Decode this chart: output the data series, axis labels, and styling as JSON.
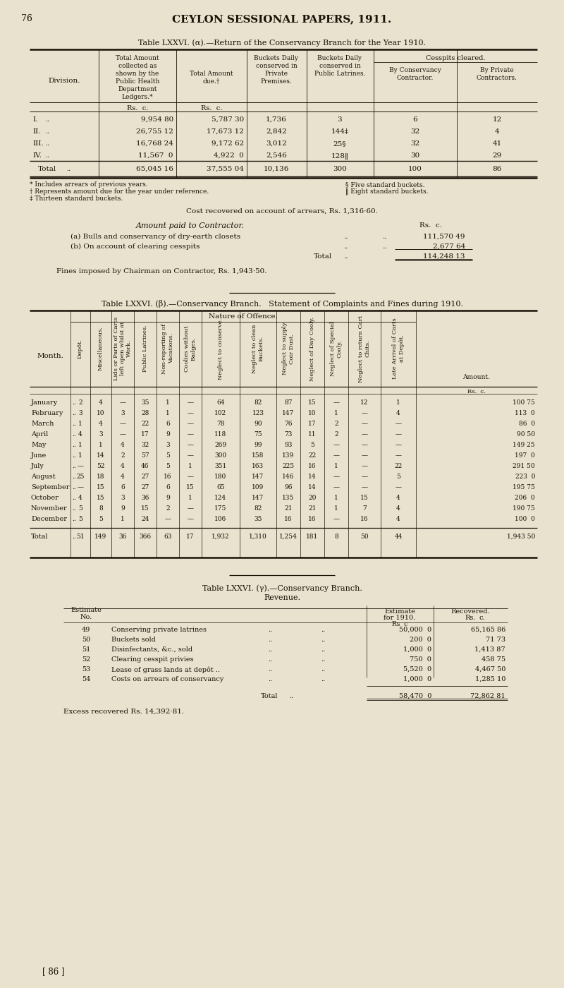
{
  "bg_color": "#e8e2ce",
  "text_color": "#1a1208",
  "table_a_rows": [
    [
      "I.",
      "..",
      "9,954 80",
      "5,787 30",
      "1,736",
      "3",
      "6",
      "12"
    ],
    [
      "II.",
      "..",
      "26,755 12",
      "17,673 12",
      "2,842",
      "144‡",
      "32",
      "4"
    ],
    [
      "III.",
      "..",
      "16,768 24",
      "9,172 62",
      "3,012",
      "25§",
      "32",
      "41"
    ],
    [
      "IV.",
      "..",
      "11,567  0",
      "4,922  0",
      "2,546",
      "128‖",
      "30",
      "29"
    ]
  ],
  "table_a_total": [
    "Total",
    "..",
    "65,045 16",
    "37,555 04",
    "10,136",
    "300",
    "100",
    "86"
  ],
  "table_b_rows": [
    [
      "January",
      "..",
      "2",
      "4",
      "—",
      "35",
      "1",
      "—",
      "64",
      "82",
      "87",
      "15",
      "—",
      "12",
      "1",
      "100 75"
    ],
    [
      "February",
      "..",
      "3",
      "10",
      "3",
      "28",
      "1",
      "—",
      "102",
      "123",
      "147",
      "10",
      "1",
      "—",
      "4",
      "113  0"
    ],
    [
      "March",
      "..",
      "1",
      "4",
      "—",
      "22",
      "6",
      "—",
      "78",
      "90",
      "76",
      "17",
      "2",
      "—",
      "—",
      "86  0"
    ],
    [
      "April",
      "..",
      "4",
      "3",
      "—",
      "17",
      "9",
      "—",
      "118",
      "75",
      "73",
      "11",
      "2",
      "—",
      "—",
      "90 50"
    ],
    [
      "May",
      "..",
      "1",
      "1",
      "4",
      "32",
      "3",
      "—",
      "269",
      "99",
      "93",
      "5",
      "—",
      "—",
      "—",
      "149 25"
    ],
    [
      "June",
      "..",
      "1",
      "14",
      "2",
      "57",
      "5",
      "—",
      "300",
      "158",
      "139",
      "22",
      "—",
      "—",
      "—",
      "197  0"
    ],
    [
      "July",
      "..",
      "—",
      "52",
      "4",
      "46",
      "5",
      "1",
      "351",
      "163",
      "225",
      "16",
      "1",
      "—",
      "22",
      "291 50"
    ],
    [
      "August",
      "..",
      "25",
      "18",
      "4",
      "27",
      "16",
      "—",
      "180",
      "147",
      "146",
      "14",
      "—",
      "—",
      "5",
      "223  0"
    ],
    [
      "September",
      "..",
      "—",
      "15",
      "6",
      "27",
      "6",
      "15",
      "65",
      "109",
      "96",
      "14",
      "—",
      "—",
      "—",
      "195 75"
    ],
    [
      "October",
      "..",
      "4",
      "15",
      "3",
      "36",
      "9",
      "1",
      "124",
      "147",
      "135",
      "20",
      "1",
      "15",
      "4",
      "206  0"
    ],
    [
      "November",
      "..",
      "5",
      "8",
      "9",
      "15",
      "2",
      "—",
      "175",
      "82",
      "21",
      "21",
      "1",
      "7",
      "4",
      "190 75"
    ],
    [
      "December",
      "..",
      "5",
      "5",
      "1",
      "24",
      "—",
      "—",
      "106",
      "35",
      "16",
      "16",
      "—",
      "16",
      "4",
      "100  0"
    ]
  ],
  "table_b_total": [
    "Total",
    "..",
    "51",
    "149",
    "36",
    "366",
    "63",
    "17",
    "1,932",
    "1,310",
    "1,254",
    "181",
    "8",
    "50",
    "44",
    "1,943 50"
  ],
  "table_c_rows": [
    [
      "49",
      "Conserving private latrines",
      "50,000  0",
      "65,165 86"
    ],
    [
      "50",
      "Buckets sold",
      "200  0",
      "71 73"
    ],
    [
      "51",
      "Disinfectants, &c., sold",
      "1,000  0",
      "1,413 87"
    ],
    [
      "52",
      "Clearing cesspit privies",
      "750  0",
      "458 75"
    ],
    [
      "53",
      "Lease of grass lands at depôt ..",
      "5,520  0",
      "4,467 50"
    ],
    [
      "54",
      "Costs on arrears of conservancy",
      "1,000  0",
      "1,285 10"
    ]
  ],
  "table_c_total": [
    "58,470  0",
    "72,862 81"
  ]
}
